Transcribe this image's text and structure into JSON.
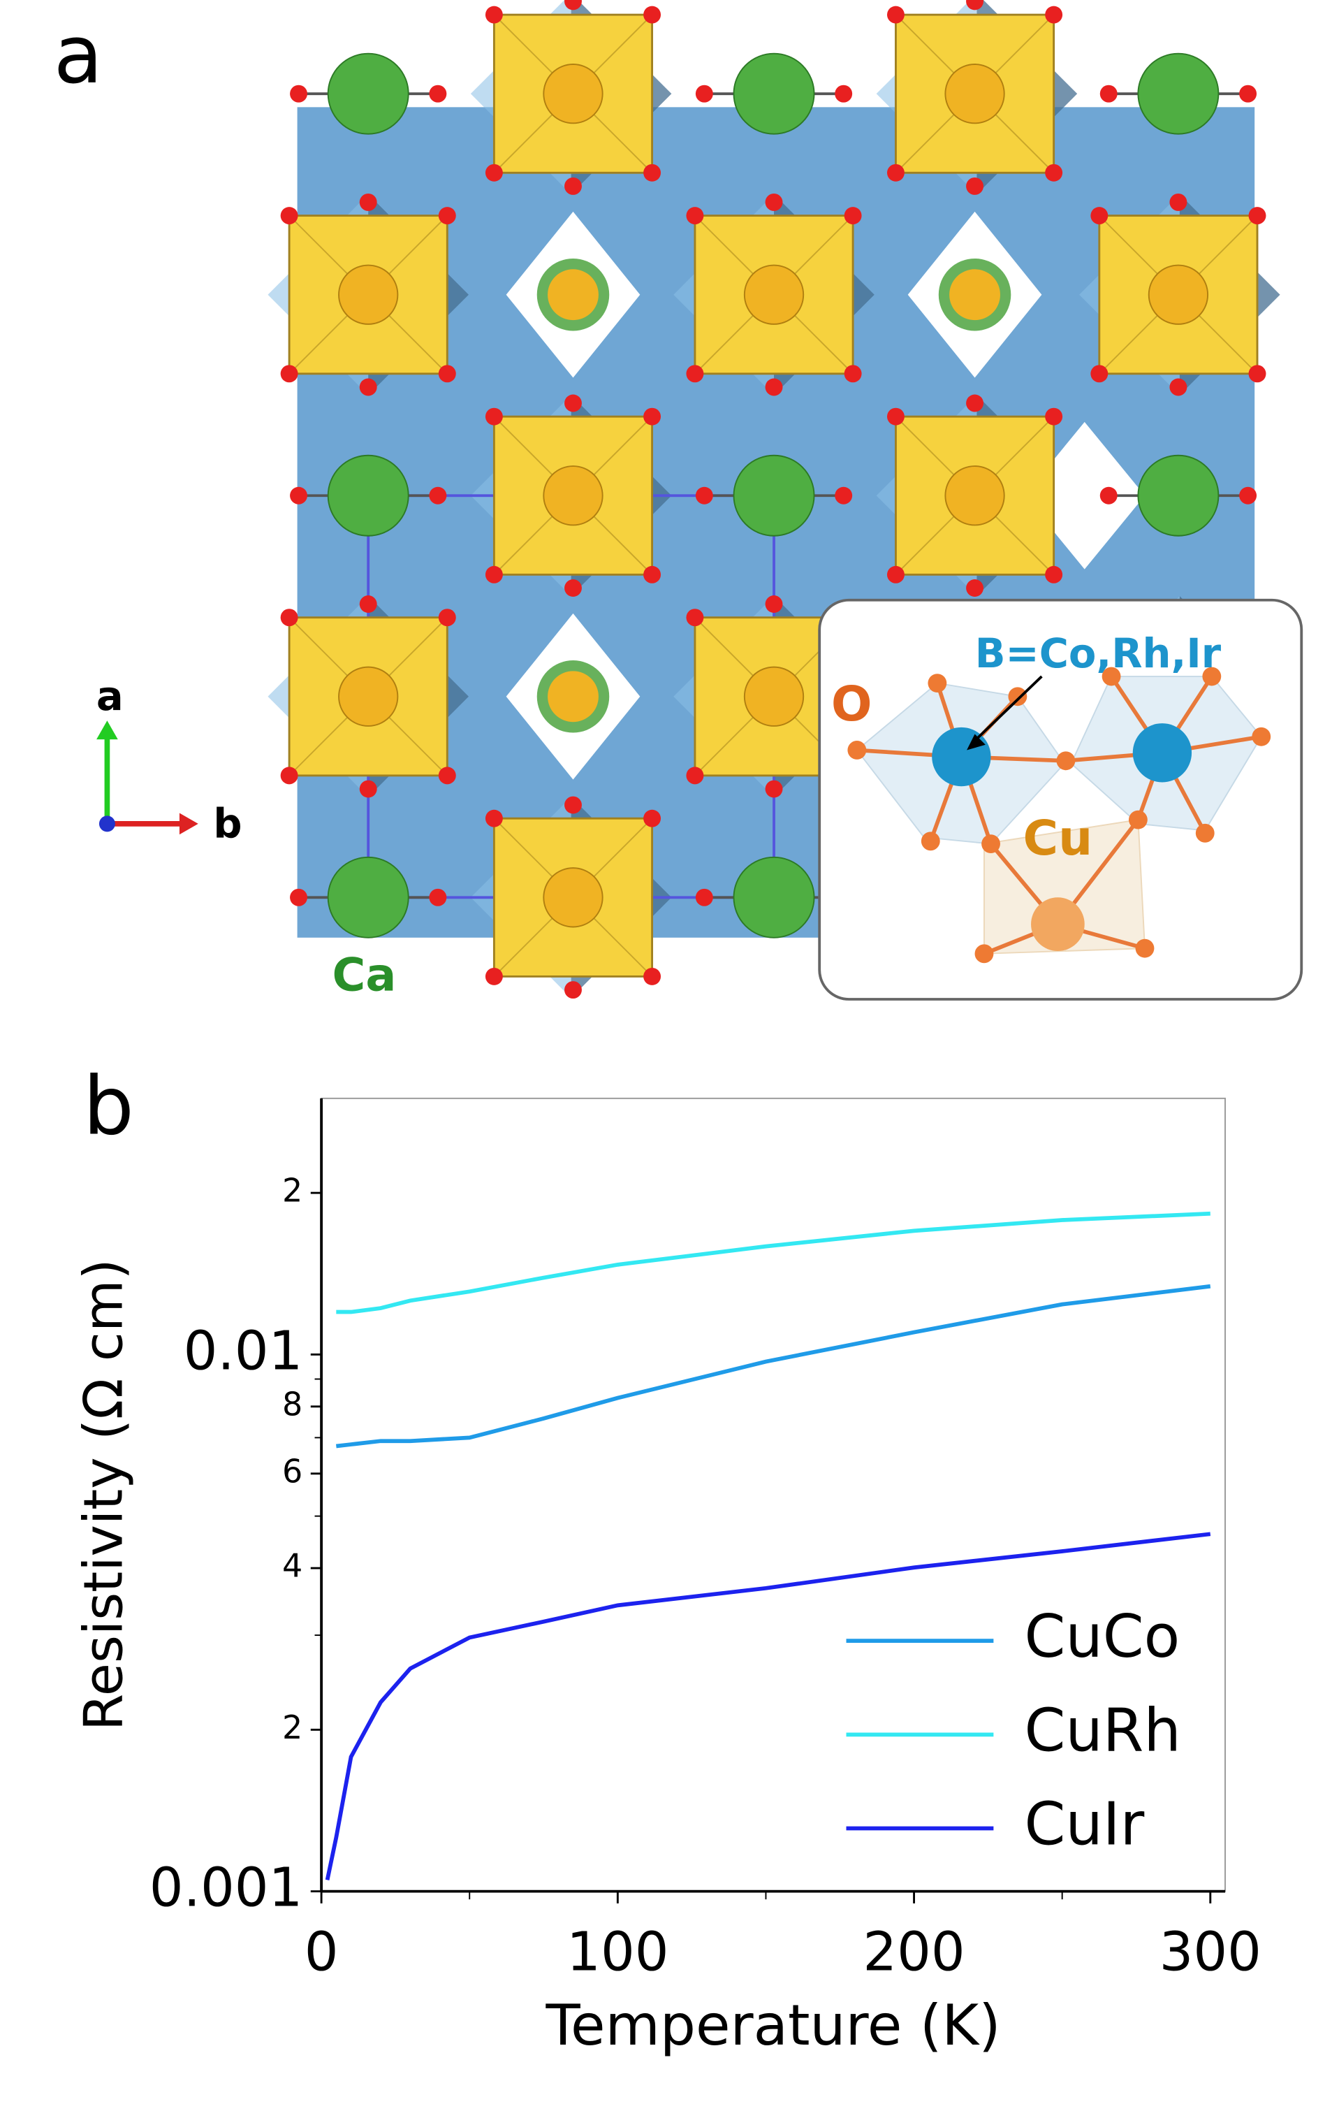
{
  "panel_labels": [
    "a",
    "b"
  ],
  "structure": {
    "axis_labels": [
      "a",
      "b"
    ],
    "atom_label": "Ca",
    "inset": {
      "labels": [
        "B=Co,Rh,Ir",
        "O",
        "Cu"
      ]
    }
  },
  "chart_data": {
    "type": "line",
    "x_label": "Temperature (K)",
    "y_label": "Resistivity (Ω cm)",
    "x": [
      2,
      5,
      10,
      20,
      30,
      50,
      75,
      100,
      150,
      200,
      250,
      300
    ],
    "series": [
      {
        "name": "CuCo",
        "color": "#1f9be8",
        "values": [
          null,
          0.00675,
          0.0068,
          0.0069,
          0.0069,
          0.007,
          0.0076,
          0.0083,
          0.0097,
          0.011,
          0.0124,
          0.0134
        ]
      },
      {
        "name": "CuRh",
        "color": "#33e8f2",
        "values": [
          null,
          0.012,
          0.012,
          0.0122,
          0.0126,
          0.0131,
          0.0139,
          0.0147,
          0.0159,
          0.017,
          0.0178,
          0.0183
        ]
      },
      {
        "name": "CuIr",
        "color": "#1c22ee",
        "values": [
          0.00105,
          0.00126,
          0.00178,
          0.00225,
          0.0026,
          0.00297,
          0.00318,
          0.00341,
          0.00367,
          0.00401,
          0.0043,
          0.00463
        ]
      }
    ],
    "xlim": [
      0,
      305
    ],
    "xticks": [
      0,
      100,
      200,
      300
    ],
    "xminor_ticks": [
      50,
      150,
      250
    ],
    "ylim": [
      0.001,
      0.03
    ],
    "yscale": "log",
    "yticks": [
      0.001,
      {
        "value": 0.002,
        "label": "2"
      },
      {
        "value": 0.004,
        "label": "4"
      },
      {
        "value": 0.006,
        "label": "6"
      },
      {
        "value": 0.008,
        "label": "8"
      },
      0.01,
      {
        "value": 0.02,
        "label": "2"
      }
    ],
    "yminor_ticks": [
      0.003,
      0.005,
      0.007,
      0.009
    ],
    "legend": "lower right",
    "grid": false
  }
}
